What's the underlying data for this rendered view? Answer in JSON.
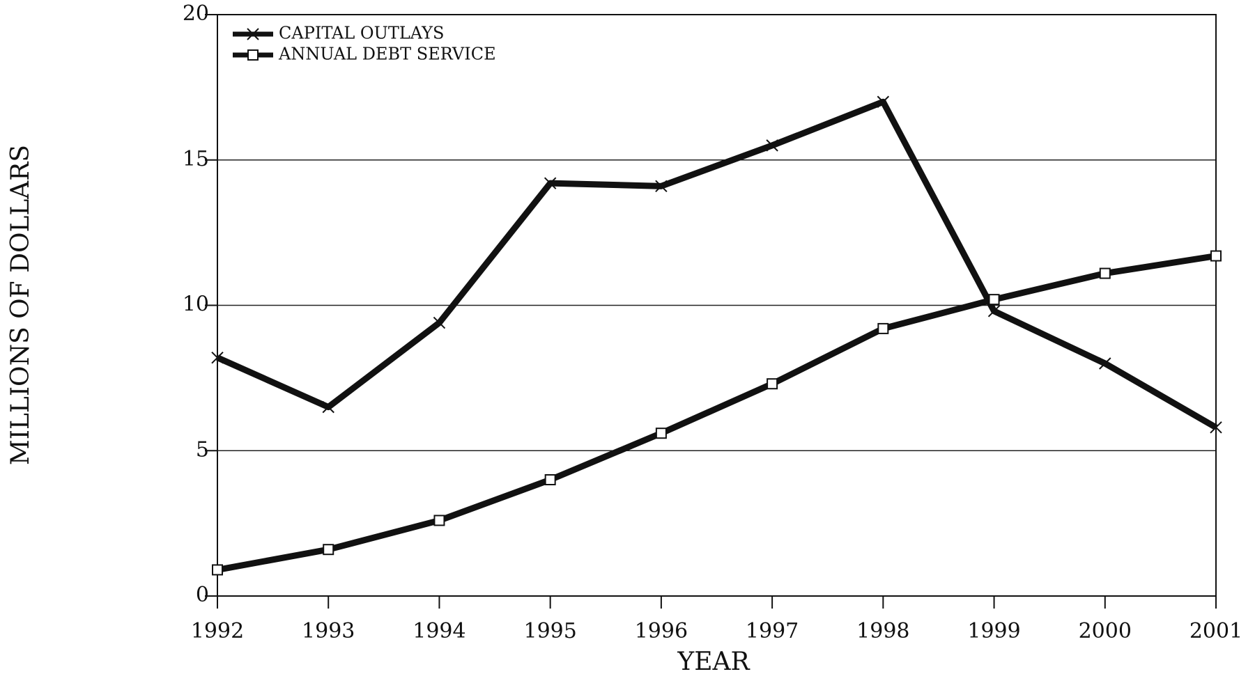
{
  "chart_data": {
    "type": "line",
    "xlabel": "YEAR",
    "ylabel": "MILLIONS OF DOLLARS",
    "x": [
      1992,
      1993,
      1994,
      1995,
      1996,
      1997,
      1998,
      1999,
      2000,
      2001
    ],
    "series": [
      {
        "name": "CAPITAL OUTLAYS",
        "color": "#111111",
        "marker": "x",
        "values": [
          8.2,
          6.5,
          9.4,
          14.2,
          14.1,
          15.5,
          17.0,
          9.8,
          8.0,
          5.8
        ]
      },
      {
        "name": "ANNUAL DEBT SERVICE",
        "color": "#111111",
        "marker": "square",
        "values": [
          0.9,
          1.6,
          2.6,
          4.0,
          5.6,
          7.3,
          9.2,
          10.2,
          11.1,
          11.7
        ]
      }
    ],
    "xlim": [
      1992,
      2001
    ],
    "xticks": [
      1992,
      1993,
      1994,
      1995,
      1996,
      1997,
      1998,
      1999,
      2000,
      2001
    ],
    "ylim": [
      0,
      20
    ],
    "yticks": [
      0,
      5,
      10,
      15,
      20
    ],
    "grid": true,
    "legend": "upper left"
  }
}
